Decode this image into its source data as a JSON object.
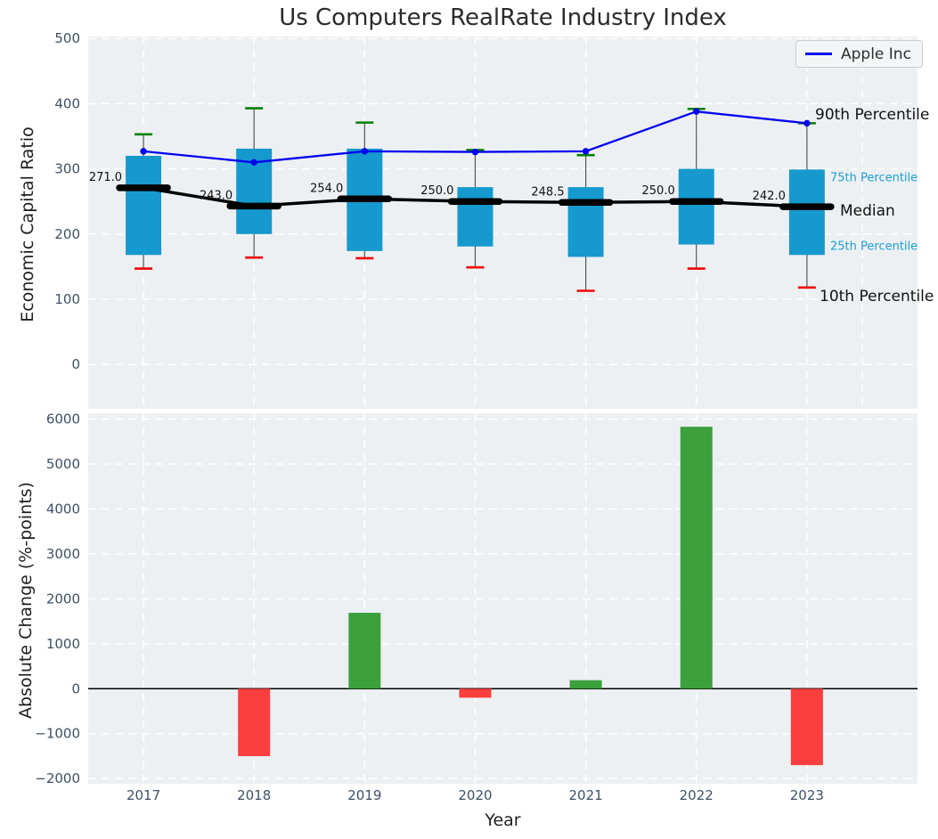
{
  "title": "Us Computers RealRate Industry Index",
  "legend": {
    "items": [
      {
        "label": "Apple Inc",
        "color": "#0202ee"
      }
    ]
  },
  "annotations": {
    "p90": "90th Percentile",
    "p75": "75th Percentile",
    "median": "Median",
    "p25": "25th Percentile",
    "p10": "10th Percentile"
  },
  "colors": {
    "plot_bg": "#edf0f2",
    "grid": "#ffffff",
    "tick_label": "#3e5066",
    "box_fill": "#1699ce",
    "whisker": "#555555",
    "cap_top_green": "#008000",
    "cap_bottom_red": "#ee0505",
    "median_black": "#000000",
    "apple_blue": "#0202ee",
    "bar_positive": "#3ca03c",
    "bar_negative": "#fb3e3e",
    "zero_line": "#000000"
  },
  "chart_data": [
    {
      "type": "boxplot-with-line",
      "title": "Us Computers RealRate Industry Index",
      "ylabel": "Economic Capital Ratio",
      "categories": [
        "2017",
        "2018",
        "2019",
        "2020",
        "2021",
        "2022",
        "2023"
      ],
      "ylim": [
        -68,
        503
      ],
      "yticks": [
        0,
        100,
        200,
        300,
        400,
        500
      ],
      "grid": "dashed-white",
      "legend_position": "upper-right",
      "series": [
        {
          "name": "90th Percentile",
          "values": [
            353,
            393,
            371,
            329,
            321,
            392,
            370
          ]
        },
        {
          "name": "75th Percentile",
          "values": [
            320,
            331,
            331,
            272,
            272,
            300,
            299
          ]
        },
        {
          "name": "Median",
          "values": [
            271,
            243,
            254,
            250,
            248.5,
            250,
            242
          ]
        },
        {
          "name": "25th Percentile",
          "values": [
            168,
            200,
            174,
            181,
            165,
            184,
            168
          ]
        },
        {
          "name": "10th Percentile",
          "values": [
            147,
            164,
            163,
            149,
            113,
            147,
            118
          ]
        },
        {
          "name": "Apple Inc",
          "values": [
            327,
            310,
            327,
            326,
            327,
            388,
            370
          ]
        }
      ],
      "median_labels": [
        "271.0",
        "243.0",
        "254.0",
        "250.0",
        "248.5",
        "250.0",
        "242.0"
      ]
    },
    {
      "type": "bar",
      "ylabel": "Absolute Change (%-points)",
      "xlabel": "Year",
      "categories": [
        "2017",
        "2018",
        "2019",
        "2020",
        "2021",
        "2022",
        "2023"
      ],
      "values": [
        0,
        -1500,
        1690,
        -200,
        190,
        5830,
        -1700
      ],
      "ylim": [
        -2115,
        6130
      ],
      "yticks": [
        -2000,
        -1000,
        0,
        1000,
        2000,
        3000,
        4000,
        5000,
        6000
      ],
      "grid": "dashed-white",
      "zero_line": true
    }
  ]
}
